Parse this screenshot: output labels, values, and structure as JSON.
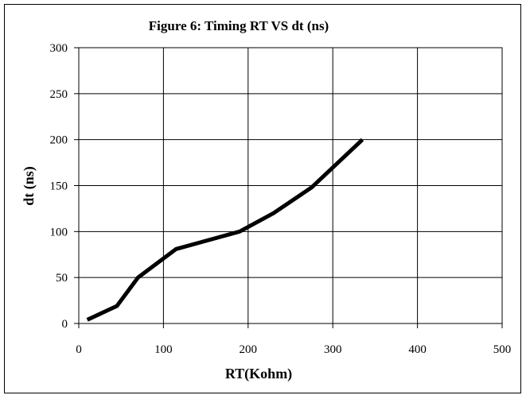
{
  "chart_data": {
    "type": "line",
    "title": "Figure 6: Timing RT VS  dt  (ns)",
    "xlabel": "RT(Kohm)",
    "ylabel": "dt  (ns)",
    "xlim": [
      0,
      500
    ],
    "ylim": [
      0,
      300
    ],
    "xticks": [
      0,
      100,
      200,
      300,
      400,
      500
    ],
    "yticks": [
      0,
      50,
      100,
      150,
      200,
      250,
      300
    ],
    "grid": true,
    "series": [
      {
        "x": [
          10,
          45,
          70,
          115,
          190,
          230,
          275,
          335
        ],
        "y": [
          4,
          19,
          50,
          81,
          100,
          120,
          148,
          200
        ]
      }
    ],
    "colors": {
      "line": "#000000",
      "grid": "#000000"
    }
  }
}
